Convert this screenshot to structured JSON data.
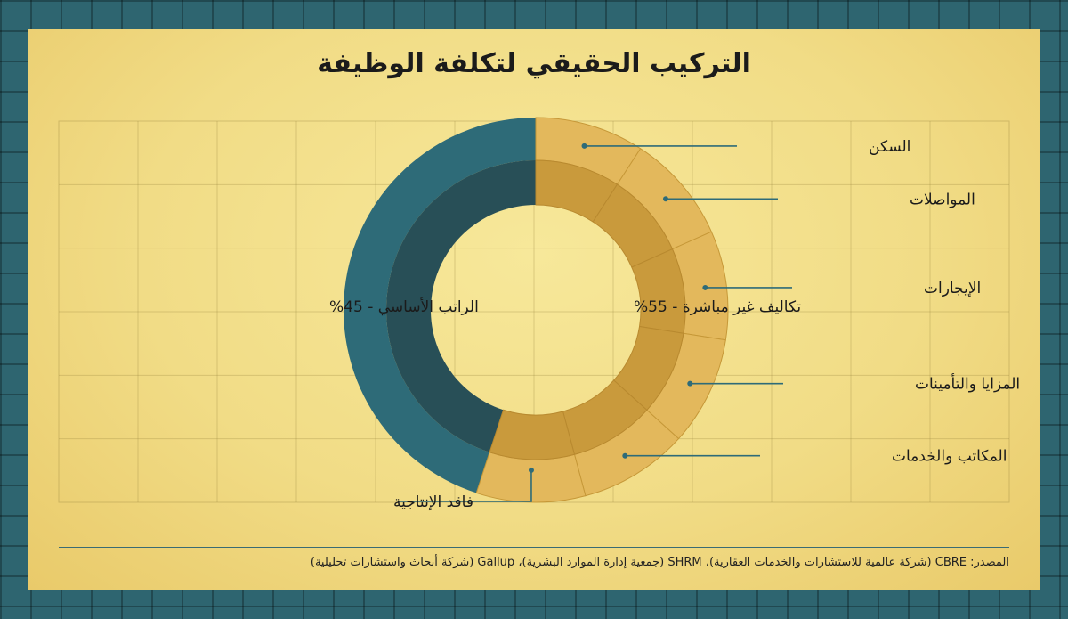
{
  "title": "التركيب الحقيقي لتكلفة الوظيفة",
  "source": "المصدر: CBRE (شركة عالمية للاستشارات والخدمات العقارية)، SHRM (جمعية إدارة الموارد البشرية)، Gallup (شركة أبحاث واستشارات تحليلية)",
  "colors": {
    "salary_outer": "#2e6b78",
    "salary_inner": "#284f57",
    "indirect_outer": "#e3b85c",
    "indirect_inner": "#c99a3c",
    "leader": "#2e6b78"
  },
  "chart_data": {
    "type": "pie",
    "title": "التركيب الحقيقي لتكلفة الوظيفة",
    "inner_ring": [
      {
        "label": "الراتب الأساسي - 45%",
        "value": 45
      },
      {
        "label": "تكاليف غير مباشرة - 55%",
        "value": 55
      }
    ],
    "outer_ring": [
      {
        "label": "السكن",
        "group": "indirect"
      },
      {
        "label": "المواصلات",
        "group": "indirect"
      },
      {
        "label": "الإيجارات",
        "group": "indirect"
      },
      {
        "label": "المزايا والتأمينات",
        "group": "indirect"
      },
      {
        "label": "المكاتب والخدمات",
        "group": "indirect"
      },
      {
        "label": "فاقد الإنتاجية",
        "group": "indirect"
      }
    ],
    "grid": true
  }
}
